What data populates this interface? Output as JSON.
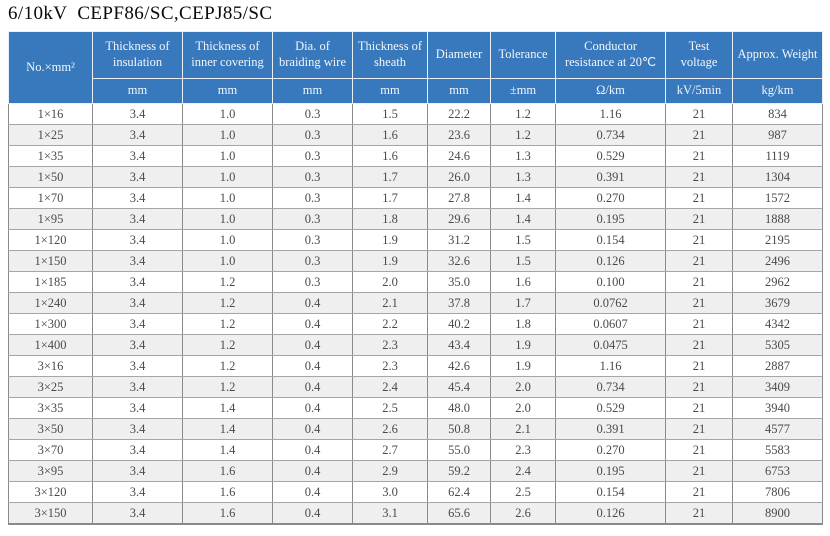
{
  "page": {
    "title": "6/10kV  CEPF86/SC,CEPJ85/SC"
  },
  "colors": {
    "header_bg": "#3879bd",
    "header_text": "#f2f6fb",
    "row_alt_bg": "#efefef",
    "row_bg": "#ffffff",
    "data_text": "#4a4a4a",
    "grid_line": "#8a8a8a"
  },
  "table": {
    "columns": [
      {
        "label": "No.×mm²",
        "unit": ""
      },
      {
        "label": "Thickness of insulation",
        "unit": "mm"
      },
      {
        "label": "Thickness of inner covering",
        "unit": "mm"
      },
      {
        "label": "Dia. of braiding wire",
        "unit": "mm"
      },
      {
        "label": "Thickness of sheath",
        "unit": "mm"
      },
      {
        "label": "Diameter",
        "unit": "mm"
      },
      {
        "label": "Tolerance",
        "unit": "±mm"
      },
      {
        "label": "Conductor resistance at 20℃",
        "unit": "Ω/km"
      },
      {
        "label": "Test voltage",
        "unit": "kV/5min"
      },
      {
        "label": "Approx. Weight",
        "unit": "kg/km"
      }
    ],
    "rows": [
      [
        "1×16",
        "3.4",
        "1.0",
        "0.3",
        "1.5",
        "22.2",
        "1.2",
        "1.16",
        "21",
        "834"
      ],
      [
        "1×25",
        "3.4",
        "1.0",
        "0.3",
        "1.6",
        "23.6",
        "1.2",
        "0.734",
        "21",
        "987"
      ],
      [
        "1×35",
        "3.4",
        "1.0",
        "0.3",
        "1.6",
        "24.6",
        "1.3",
        "0.529",
        "21",
        "1119"
      ],
      [
        "1×50",
        "3.4",
        "1.0",
        "0.3",
        "1.7",
        "26.0",
        "1.3",
        "0.391",
        "21",
        "1304"
      ],
      [
        "1×70",
        "3.4",
        "1.0",
        "0.3",
        "1.7",
        "27.8",
        "1.4",
        "0.270",
        "21",
        "1572"
      ],
      [
        "1×95",
        "3.4",
        "1.0",
        "0.3",
        "1.8",
        "29.6",
        "1.4",
        "0.195",
        "21",
        "1888"
      ],
      [
        "1×120",
        "3.4",
        "1.0",
        "0.3",
        "1.9",
        "31.2",
        "1.5",
        "0.154",
        "21",
        "2195"
      ],
      [
        "1×150",
        "3.4",
        "1.0",
        "0.3",
        "1.9",
        "32.6",
        "1.5",
        "0.126",
        "21",
        "2496"
      ],
      [
        "1×185",
        "3.4",
        "1.2",
        "0.3",
        "2.0",
        "35.0",
        "1.6",
        "0.100",
        "21",
        "2962"
      ],
      [
        "1×240",
        "3.4",
        "1.2",
        "0.4",
        "2.1",
        "37.8",
        "1.7",
        "0.0762",
        "21",
        "3679"
      ],
      [
        "1×300",
        "3.4",
        "1.2",
        "0.4",
        "2.2",
        "40.2",
        "1.8",
        "0.0607",
        "21",
        "4342"
      ],
      [
        "1×400",
        "3.4",
        "1.2",
        "0.4",
        "2.3",
        "43.4",
        "1.9",
        "0.0475",
        "21",
        "5305"
      ],
      [
        "3×16",
        "3.4",
        "1.2",
        "0.4",
        "2.3",
        "42.6",
        "1.9",
        "1.16",
        "21",
        "2887"
      ],
      [
        "3×25",
        "3.4",
        "1.2",
        "0.4",
        "2.4",
        "45.4",
        "2.0",
        "0.734",
        "21",
        "3409"
      ],
      [
        "3×35",
        "3.4",
        "1.4",
        "0.4",
        "2.5",
        "48.0",
        "2.0",
        "0.529",
        "21",
        "3940"
      ],
      [
        "3×50",
        "3.4",
        "1.4",
        "0.4",
        "2.6",
        "50.8",
        "2.1",
        "0.391",
        "21",
        "4577"
      ],
      [
        "3×70",
        "3.4",
        "1.4",
        "0.4",
        "2.7",
        "55.0",
        "2.3",
        "0.270",
        "21",
        "5583"
      ],
      [
        "3×95",
        "3.4",
        "1.6",
        "0.4",
        "2.9",
        "59.2",
        "2.4",
        "0.195",
        "21",
        "6753"
      ],
      [
        "3×120",
        "3.4",
        "1.6",
        "0.4",
        "3.0",
        "62.4",
        "2.5",
        "0.154",
        "21",
        "7806"
      ],
      [
        "3×150",
        "3.4",
        "1.6",
        "0.4",
        "3.1",
        "65.6",
        "2.6",
        "0.126",
        "21",
        "8900"
      ]
    ]
  }
}
